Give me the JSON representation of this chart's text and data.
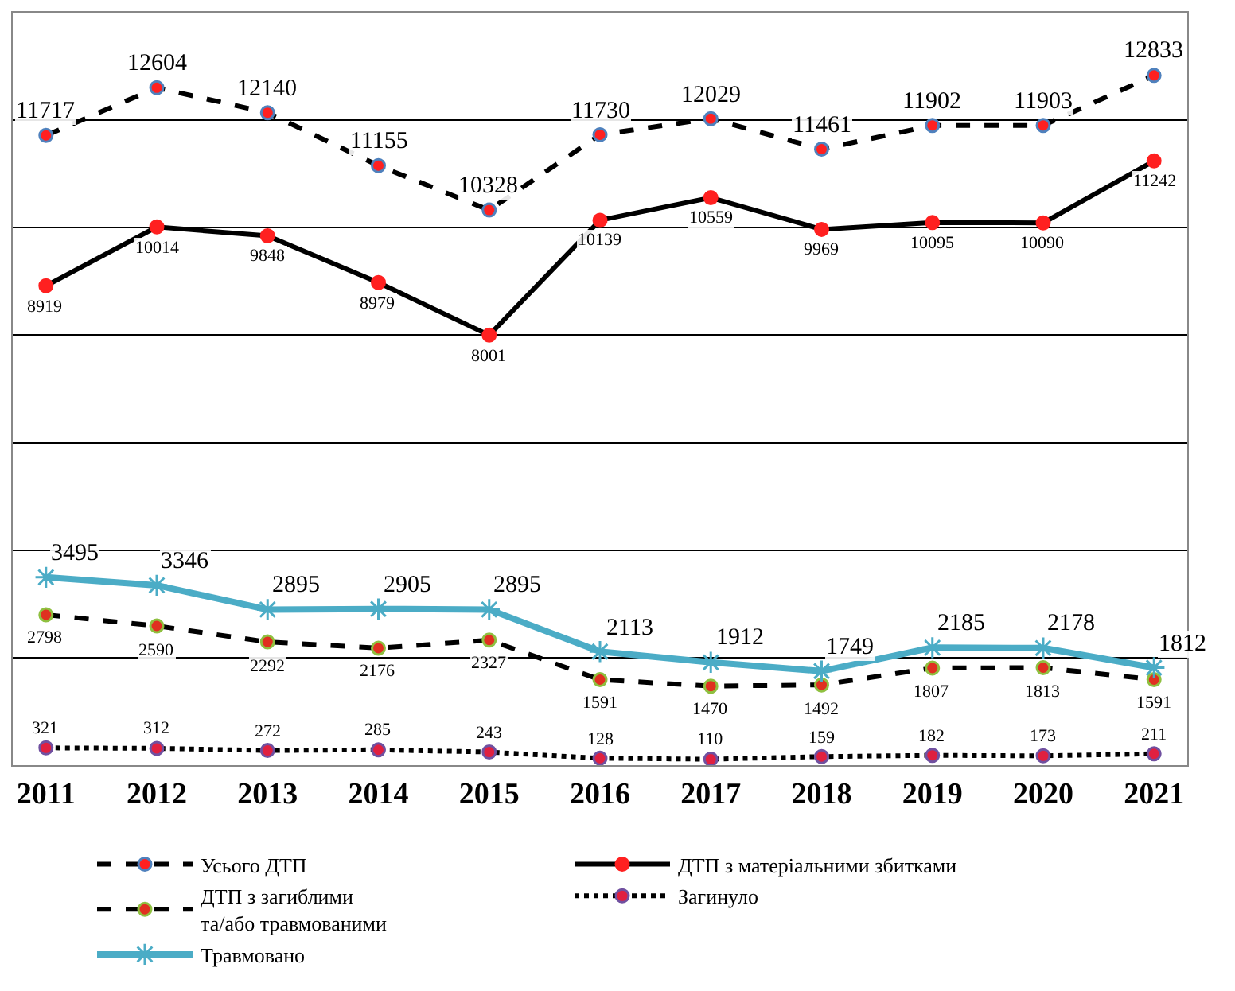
{
  "chart_data": {
    "type": "line",
    "categories": [
      "2011",
      "2012",
      "2013",
      "2014",
      "2015",
      "2016",
      "2017",
      "2018",
      "2019",
      "2020",
      "2021"
    ],
    "series": [
      {
        "name": "Усього ДТП",
        "color": "#000000",
        "line_style": "dashed",
        "marker": "circle",
        "values": [
          11717,
          12604,
          12140,
          11155,
          10328,
          11730,
          12029,
          11461,
          11902,
          11903,
          12833
        ]
      },
      {
        "name": "ДТП з матеріальними збитками",
        "color": "#000000",
        "line_style": "solid",
        "marker": "circle",
        "values": [
          8919,
          10014,
          9848,
          8979,
          8001,
          10139,
          10559,
          9969,
          10095,
          10090,
          11242
        ]
      },
      {
        "name": "ДТП з загиблими та/або травмованими",
        "color": "#000000",
        "line_style": "dashed",
        "marker": "circle",
        "values": [
          2798,
          2590,
          2292,
          2176,
          2327,
          1591,
          1470,
          1492,
          1807,
          1813,
          1591
        ]
      },
      {
        "name": "Загинуло",
        "color": "#000000",
        "line_style": "dotted",
        "marker": "circle",
        "values": [
          321,
          312,
          272,
          285,
          243,
          128,
          110,
          159,
          182,
          173,
          211
        ]
      },
      {
        "name": "Травмовано",
        "color": "#4bacc6",
        "line_style": "solid",
        "marker": "cross",
        "values": [
          3495,
          3346,
          2895,
          2905,
          2895,
          2113,
          1912,
          1749,
          2185,
          2178,
          1812
        ]
      }
    ],
    "ylim": [
      0,
      14000
    ],
    "yticks": [
      {
        "value": 0,
        "label": null
      },
      {
        "value": 2000,
        "label": null
      },
      {
        "value": 4000,
        "label": null
      },
      {
        "value": 6000,
        "label": null
      },
      {
        "value": 8000,
        "label": null
      },
      {
        "value": 10000,
        "label": null
      },
      {
        "value": 12000,
        "label": null
      },
      {
        "value": 14000,
        "label": null
      }
    ],
    "grid": "y",
    "legend": "bottom",
    "data_labels": true,
    "tick_labels": "x"
  }
}
